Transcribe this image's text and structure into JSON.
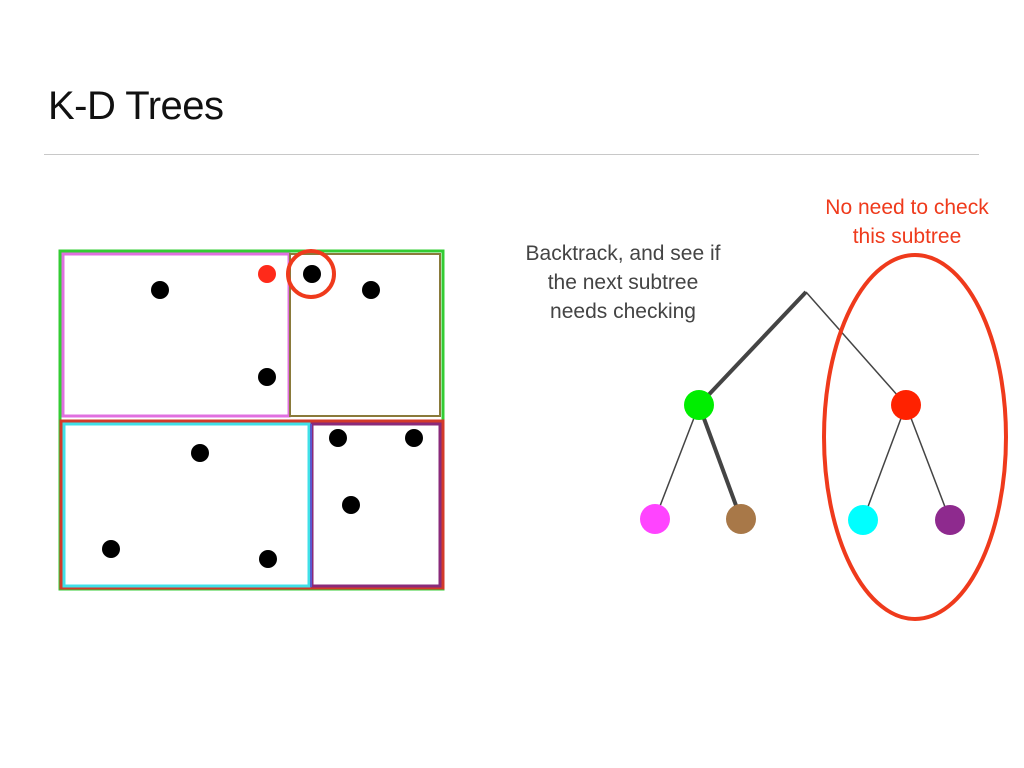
{
  "title": "K-D Trees",
  "annotations": {
    "backtrack_line1": "Backtrack, and see if",
    "backtrack_line2": "the next subtree",
    "backtrack_line3": "needs checking",
    "no_need_line1": "No need to check",
    "no_need_line2": "this subtree"
  },
  "colors": {
    "root_region": "#33cc33",
    "magenta_region": "#e070e0",
    "brown_region": "#8a7a3a",
    "red_region": "#d33a2a",
    "cyan_region": "#40e0e8",
    "purple_region": "#8a2a7a",
    "query_point": "#ff2a1a",
    "highlight": "#ef3a1c",
    "node_green": "#00ee00",
    "node_red": "#ff2200",
    "node_magenta": "#ff44ff",
    "node_brown": "#a87848",
    "node_cyan": "#00ffff",
    "node_purple": "#8e2a8e",
    "data_point": "#000000",
    "edge": "#444444"
  },
  "tree": {
    "nodes": [
      "root",
      "green",
      "red",
      "magenta",
      "brown",
      "cyan",
      "purple"
    ],
    "visited_path": [
      "root-green",
      "green-brown"
    ]
  }
}
